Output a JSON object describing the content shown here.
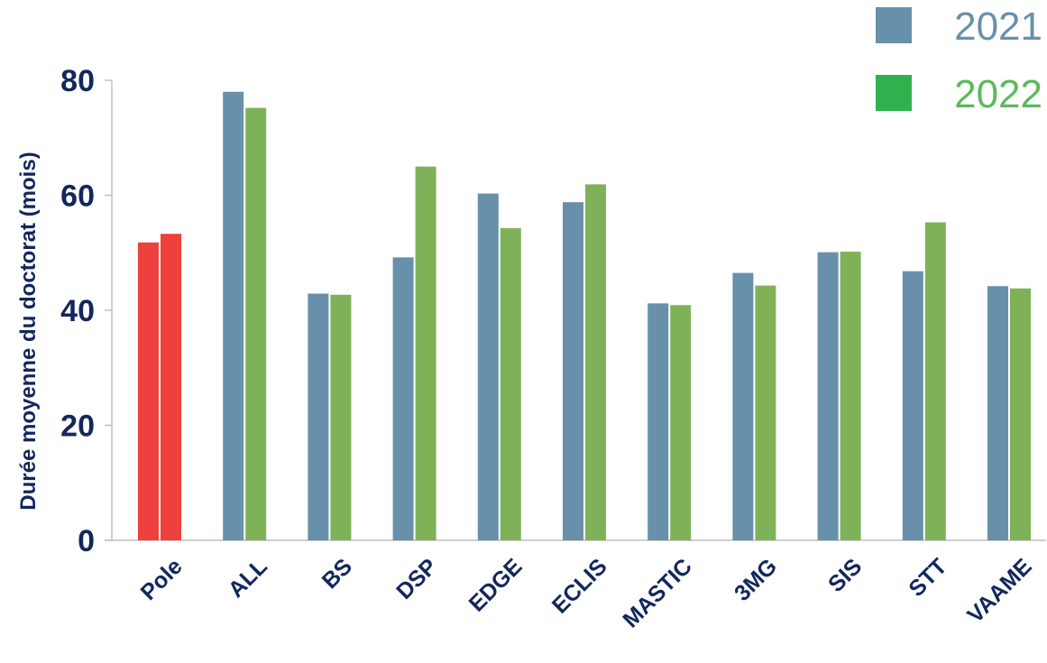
{
  "chart_data": {
    "type": "bar",
    "ylabel": "Durée moyenne du doctorat (mois)",
    "ylim": [
      0,
      80
    ],
    "yticks": [
      "0",
      "20",
      "40",
      "60",
      "80"
    ],
    "categories": [
      "Pole",
      "ALL",
      "BS",
      "DSP",
      "EDGE",
      "ECLIS",
      "MASTIC",
      "3MG",
      "SIS",
      "STT",
      "VAAME"
    ],
    "series": [
      {
        "name": "2021",
        "color": "#6890aa",
        "values": [
          51.8,
          78.0,
          42.9,
          49.2,
          60.3,
          58.8,
          41.2,
          46.5,
          50.1,
          46.8,
          44.2
        ]
      },
      {
        "name": "2022",
        "color": "#7fb258",
        "values": [
          53.3,
          75.2,
          42.7,
          65.0,
          54.3,
          61.9,
          40.9,
          44.3,
          50.2,
          55.3,
          43.8
        ]
      }
    ],
    "highlight": {
      "category": "Pole",
      "color": "#ee403c"
    },
    "legend": {
      "position": "top-right",
      "entries": [
        {
          "label": "2021",
          "swatch": "#6890aa",
          "text_color": "#6890aa"
        },
        {
          "label": "2022",
          "swatch": "#2fb14e",
          "text_color": "#5cb95b"
        }
      ]
    },
    "colors": {
      "text": "#13275d",
      "axis": "#bfbfbf"
    },
    "grid": false
  }
}
